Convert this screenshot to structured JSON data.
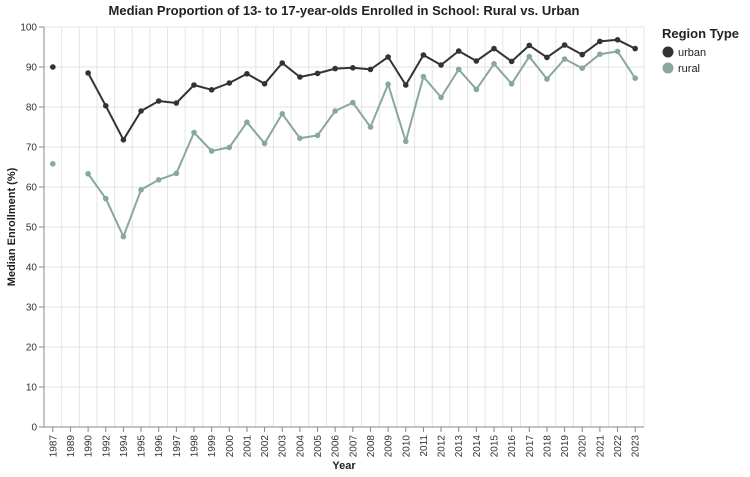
{
  "chart_data": {
    "type": "line",
    "title": "Median Proportion of 13- to 17-year-olds Enrolled in School: Rural vs. Urban",
    "xlabel": "Year",
    "ylabel": "Median Enrollment (%)",
    "ylim": [
      0,
      100
    ],
    "y_ticks": [
      0,
      10,
      20,
      30,
      40,
      50,
      60,
      70,
      80,
      90,
      100
    ],
    "grid": true,
    "legend": {
      "title": "Region Type",
      "placement": "top-right"
    },
    "categories": [
      "1987",
      "1989",
      "1990",
      "1992",
      "1994",
      "1995",
      "1996",
      "1997",
      "1998",
      "1999",
      "2000",
      "2001",
      "2002",
      "2003",
      "2004",
      "2005",
      "2006",
      "2007",
      "2008",
      "2009",
      "2010",
      "2011",
      "2012",
      "2013",
      "2014",
      "2015",
      "2016",
      "2017",
      "2018",
      "2019",
      "2020",
      "2021",
      "2022",
      "2023"
    ],
    "series": [
      {
        "name": "urban",
        "color": "#333333",
        "values": [
          90.0,
          null,
          88.5,
          80.3,
          71.8,
          79.0,
          81.5,
          81.0,
          85.5,
          84.3,
          86.0,
          88.3,
          85.8,
          91.0,
          87.5,
          88.4,
          89.6,
          89.8,
          89.4,
          92.5,
          85.5,
          93.0,
          90.5,
          94.0,
          91.5,
          94.6,
          91.4,
          95.4,
          92.4,
          95.5,
          93.1,
          96.4,
          96.8,
          94.6
        ]
      },
      {
        "name": "rural",
        "color": "#88a7a0",
        "values": [
          65.8,
          null,
          63.3,
          57.1,
          47.6,
          59.3,
          61.8,
          63.4,
          73.6,
          69.0,
          69.9,
          76.2,
          70.9,
          78.3,
          72.2,
          72.9,
          79.0,
          81.1,
          75.0,
          85.7,
          71.4,
          87.6,
          82.4,
          89.4,
          84.4,
          90.8,
          85.8,
          92.6,
          87.0,
          92.0,
          89.7,
          93.2,
          93.9,
          87.2
        ]
      }
    ]
  }
}
